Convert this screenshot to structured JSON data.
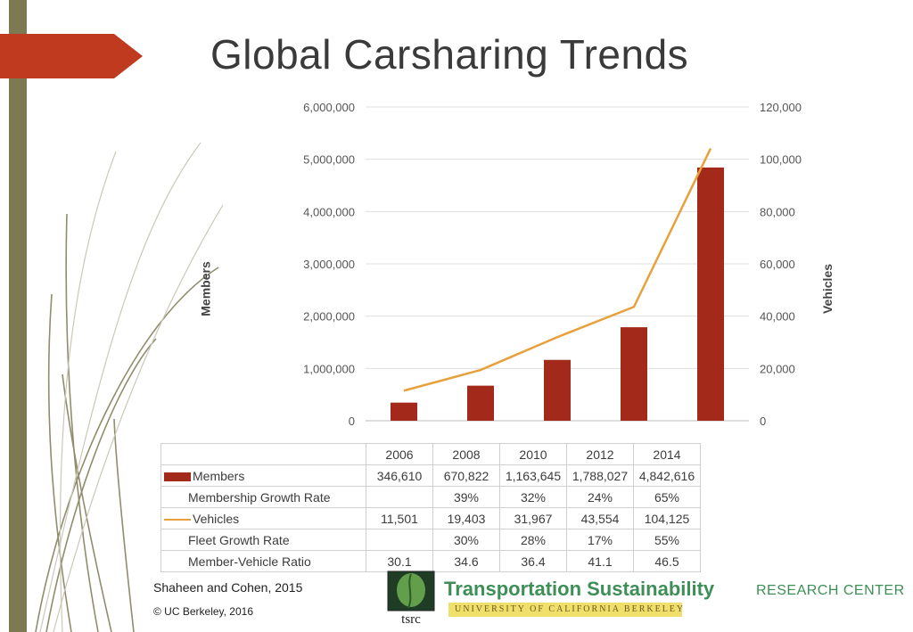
{
  "slide": {
    "title": "Global Carsharing Trends",
    "source": "Shaheen and Cohen, 2015",
    "copyright": "© UC Berkeley, 2016",
    "logo": {
      "name": "Transportation Sustainability",
      "suffix": "RESEARCH CENTER",
      "subtitle": "UNIVERSITY OF CALIFORNIA BERKELEY",
      "mark": "tsrc"
    },
    "colors": {
      "members_bar": "#a32a1a",
      "vehicles_line": "#e8a13a",
      "sidebar": "#7d7a53",
      "arrow": "#bf3a1e",
      "logo_green": "#3e8f57"
    }
  },
  "chart_data": {
    "type": "bar",
    "title": "Global Carsharing Trends",
    "categories": [
      "2006",
      "2008",
      "2010",
      "2012",
      "2014"
    ],
    "ylabel": "Members",
    "y2label": "Vehicles",
    "ylim": [
      0,
      6000000
    ],
    "y2lim": [
      0,
      120000
    ],
    "y_ticks": [
      "0",
      "1,000,000",
      "2,000,000",
      "3,000,000",
      "4,000,000",
      "5,000,000",
      "6,000,000"
    ],
    "y2_ticks": [
      "0",
      "20,000",
      "40,000",
      "60,000",
      "80,000",
      "100,000",
      "120,000"
    ],
    "grid": true,
    "series": [
      {
        "name": "Members",
        "type": "bar",
        "axis": "left",
        "values": [
          346610,
          670822,
          1163645,
          1788027,
          4842616
        ]
      },
      {
        "name": "Vehicles",
        "type": "line",
        "axis": "right",
        "values": [
          11501,
          19403,
          31967,
          43554,
          104125
        ]
      }
    ],
    "table": {
      "rows": [
        {
          "label": "Members",
          "key": "bar",
          "values": [
            "346,610",
            "670,822",
            "1,163,645",
            "1,788,027",
            "4,842,616"
          ]
        },
        {
          "label": "Membership Growth Rate",
          "key": "",
          "values": [
            "",
            "39%",
            "32%",
            "24%",
            "65%"
          ]
        },
        {
          "label": "Vehicles",
          "key": "line",
          "values": [
            "11,501",
            "19,403",
            "31,967",
            "43,554",
            "104,125"
          ]
        },
        {
          "label": "Fleet Growth Rate",
          "key": "",
          "values": [
            "",
            "30%",
            "28%",
            "17%",
            "55%"
          ]
        },
        {
          "label": "Member-Vehicle Ratio",
          "key": "",
          "values": [
            "30.1",
            "34.6",
            "36.4",
            "41.1",
            "46.5"
          ]
        }
      ]
    }
  }
}
